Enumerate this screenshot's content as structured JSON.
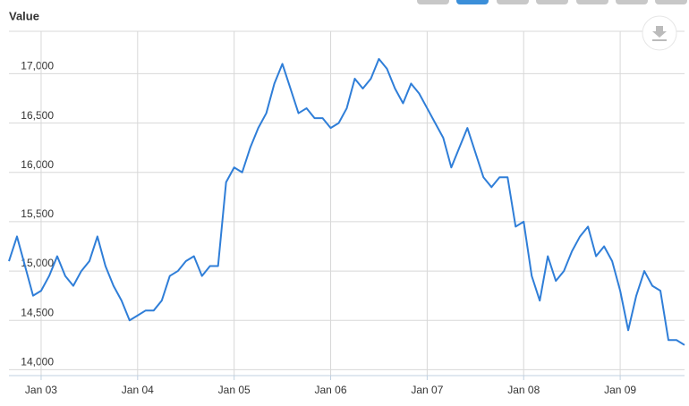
{
  "chart_data": {
    "type": "line",
    "ylabel": "Value",
    "x": [
      "Sep 02",
      "Oct 02",
      "Nov 02",
      "Dec 02",
      "Jan 03",
      "Feb 03",
      "Mar 03",
      "Apr 03",
      "May 03",
      "Jun 03",
      "Jul 03",
      "Aug 03",
      "Sep 03",
      "Oct 03",
      "Nov 03",
      "Dec 03",
      "Jan 04",
      "Feb 04",
      "Mar 04",
      "Apr 04",
      "May 04",
      "Jun 04",
      "Jul 04",
      "Aug 04",
      "Sep 04",
      "Oct 04",
      "Nov 04",
      "Dec 04",
      "Jan 05",
      "Feb 05",
      "Mar 05",
      "Apr 05",
      "May 05",
      "Jun 05",
      "Jul 05",
      "Aug 05",
      "Sep 05",
      "Oct 05",
      "Nov 05",
      "Dec 05",
      "Jan 06",
      "Feb 06",
      "Mar 06",
      "Apr 06",
      "May 06",
      "Jun 06",
      "Jul 06",
      "Aug 06",
      "Sep 06",
      "Oct 06",
      "Nov 06",
      "Dec 06",
      "Jan 07",
      "Feb 07",
      "Mar 07",
      "Apr 07",
      "May 07",
      "Jun 07",
      "Jul 07",
      "Aug 07",
      "Sep 07",
      "Oct 07",
      "Nov 07",
      "Dec 07",
      "Jan 08",
      "Feb 08",
      "Mar 08",
      "Apr 08",
      "May 08",
      "Jun 08",
      "Jul 08",
      "Aug 08",
      "Sep 08",
      "Oct 08",
      "Nov 08",
      "Dec 08",
      "Jan 09",
      "Feb 09",
      "Mar 09",
      "Apr 09",
      "May 09",
      "Jun 09",
      "Jul 09",
      "Aug 09",
      "Sep 09"
    ],
    "values": [
      15100,
      15350,
      15050,
      14750,
      14800,
      14950,
      15150,
      14950,
      14850,
      15000,
      15100,
      15350,
      15050,
      14850,
      14700,
      14500,
      14550,
      14600,
      14600,
      14700,
      14950,
      15000,
      15100,
      15150,
      14950,
      15050,
      15050,
      15900,
      16050,
      16000,
      16250,
      16450,
      16600,
      16900,
      17100,
      16850,
      16600,
      16650,
      16550,
      16550,
      16450,
      16500,
      16650,
      16950,
      16850,
      16950,
      17150,
      17050,
      16850,
      16700,
      16900,
      16800,
      16650,
      16500,
      16350,
      16050,
      16250,
      16450,
      16200,
      15950,
      15850,
      15950,
      15950,
      15450,
      15500,
      14950,
      14700,
      15150,
      14900,
      15000,
      15200,
      15350,
      15450,
      15150,
      15250,
      15100,
      14800,
      14400,
      14750,
      15000,
      14850,
      14800,
      14300,
      14300,
      14250
    ],
    "color": "#2f7ed8",
    "ylim": [
      13940,
      17430
    ],
    "yticks": [
      {
        "value": 14000,
        "label": "14,000"
      },
      {
        "value": 14500,
        "label": "14,500"
      },
      {
        "value": 15000,
        "label": "15,000"
      },
      {
        "value": 15500,
        "label": "15,500"
      },
      {
        "value": 16000,
        "label": "16,000"
      },
      {
        "value": 16500,
        "label": "16,500"
      },
      {
        "value": 17000,
        "label": "17,000"
      }
    ],
    "xticks": [
      "Jan 03",
      "Jan 04",
      "Jan 05",
      "Jan 06",
      "Jan 07",
      "Jan 08",
      "Jan 09"
    ],
    "grid": true
  }
}
